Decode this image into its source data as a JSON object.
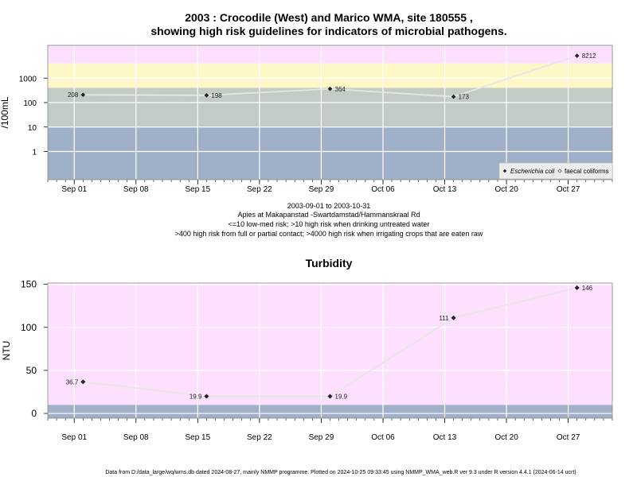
{
  "colors": {
    "band_low": "#a0b0c8",
    "band_med": "#c2ccc4",
    "band_high": "#fef8c8",
    "band_vhigh": "#fde0fe",
    "turb_low": "#a0b0c8",
    "turb_high": "#fde0fe",
    "grid": "#ffffff",
    "line": "#e6e6e6",
    "point": "#222222"
  },
  "footer": "Data from D:/data_large/wq/wms.db dated 2024-08-27, mainly NMMP programme. Plotted on 2024-10-25 09:33:45 using NMMP_WMA_web.R ver 9.3 under R version 4.4.1 (2024-06-14 ucrt)",
  "chart_data": [
    {
      "type": "line",
      "title_line1": "2003 : Crocodile (West) and Marico WMA, site 180555 ,",
      "title_line2": "showing high risk guidelines for indicators of microbial pathogens.",
      "ylabel": "/100mL",
      "y_scale": "log10",
      "ylim": [
        0.07,
        22000
      ],
      "yticks": [
        1,
        10,
        100,
        1000
      ],
      "ytick_labels": [
        "1",
        "10",
        "100",
        "1000"
      ],
      "xlim": [
        "2003-08-29",
        "2003-11-01"
      ],
      "xticks": [
        "2003-09-01",
        "2003-09-08",
        "2003-09-15",
        "2003-09-22",
        "2003-09-29",
        "2003-10-06",
        "2003-10-13",
        "2003-10-20",
        "2003-10-27"
      ],
      "xtick_labels": [
        "Sep 01",
        "Sep 08",
        "Sep 15",
        "Sep 22",
        "Sep 29",
        "Oct 06",
        "Oct 13",
        "Oct 20",
        "Oct 27"
      ],
      "bands": [
        {
          "from": 0.07,
          "to": 10,
          "color": "band_low"
        },
        {
          "from": 10,
          "to": 400,
          "color": "band_med"
        },
        {
          "from": 400,
          "to": 4000,
          "color": "band_high"
        },
        {
          "from": 4000,
          "to": 22000,
          "color": "band_vhigh"
        }
      ],
      "series": [
        {
          "name": "Escherichia coli",
          "x": [
            "2003-09-02",
            "2003-09-16",
            "2003-09-30",
            "2003-10-14",
            "2003-10-28"
          ],
          "y": [
            208,
            198,
            364,
            173,
            8212
          ],
          "labels": [
            "208",
            "198",
            "364",
            "173",
            "8212"
          ],
          "label_side": [
            "left",
            "right",
            "right",
            "right",
            "right"
          ]
        }
      ],
      "legend": [
        "Escherichia coli",
        "faecal coliforms"
      ],
      "legend_position": "bottom-right",
      "caption": [
        "2003-09-01 to 2003-10-31",
        "Apies at Makapanstad -Swartdamstad/Hammanskraal Rd",
        "<=10 low-med risk; >10 high risk when drinking untreated water",
        ">400 high risk from full or partial contact; >4000 high risk when irrigating crops that are eaten raw"
      ]
    },
    {
      "type": "line",
      "title": "Turbidity",
      "ylabel": "NTU",
      "ylim": [
        -5.5,
        151.5
      ],
      "yticks": [
        0,
        50,
        100,
        150
      ],
      "ytick_labels": [
        "0",
        "50",
        "100",
        "150"
      ],
      "xlim": [
        "2003-08-29",
        "2003-11-01"
      ],
      "xticks": [
        "2003-09-01",
        "2003-09-08",
        "2003-09-15",
        "2003-09-22",
        "2003-09-29",
        "2003-10-06",
        "2003-10-13",
        "2003-10-20",
        "2003-10-27"
      ],
      "xtick_labels": [
        "Sep 01",
        "Sep 08",
        "Sep 15",
        "Sep 22",
        "Sep 29",
        "Oct 06",
        "Oct 13",
        "Oct 20",
        "Oct 27"
      ],
      "bands": [
        {
          "from": -5.5,
          "to": 10,
          "color": "turb_low"
        },
        {
          "from": 10,
          "to": 151.5,
          "color": "turb_high"
        }
      ],
      "series": [
        {
          "name": "",
          "x": [
            "2003-09-02",
            "2003-09-16",
            "2003-09-30",
            "2003-10-14",
            "2003-10-28"
          ],
          "y": [
            36.7,
            19.9,
            19.9,
            111,
            146
          ],
          "labels": [
            "36.7",
            "19.9",
            "19.9",
            "111",
            "146"
          ],
          "label_side": [
            "left",
            "left",
            "right",
            "left",
            "right"
          ]
        }
      ]
    }
  ]
}
